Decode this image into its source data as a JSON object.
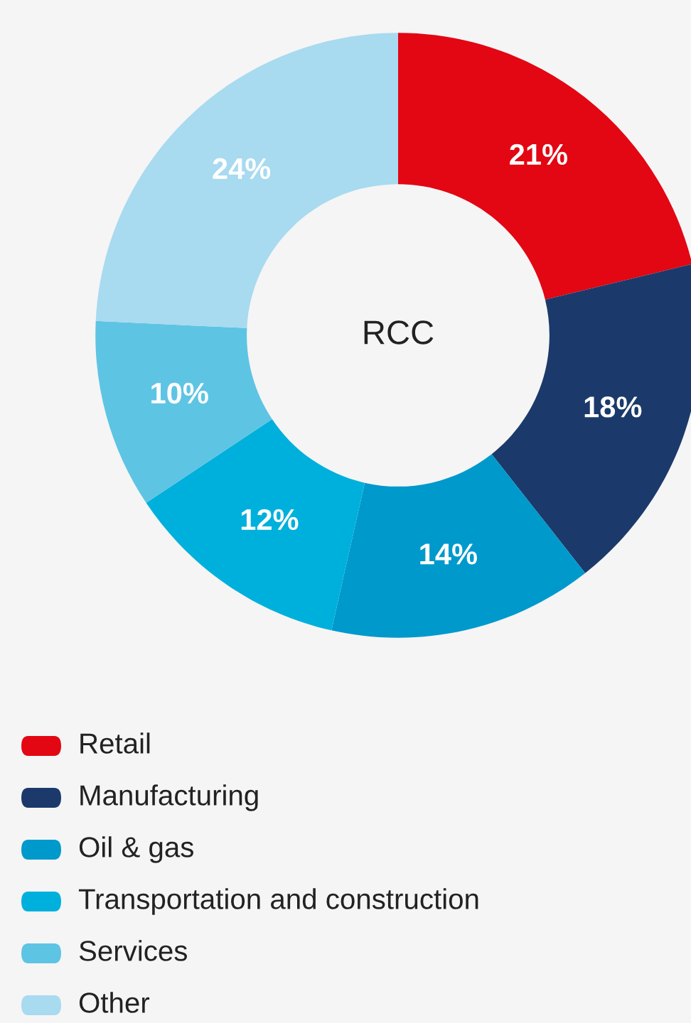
{
  "chart_data": {
    "type": "donut",
    "title": "RCC",
    "categories": [
      "Retail",
      "Manufacturing",
      "Oil & gas",
      "Transportation and construction",
      "Services",
      "Other"
    ],
    "values": [
      21,
      18,
      14,
      12,
      10,
      24
    ],
    "colors": [
      "#e30613",
      "#1b3a6b",
      "#0099cc",
      "#00b0dc",
      "#5ec4e4",
      "#a8daf0"
    ],
    "value_labels": [
      "21%",
      "18%",
      "14%",
      "12%",
      "10%",
      "24%"
    ],
    "legend": "bottom"
  }
}
